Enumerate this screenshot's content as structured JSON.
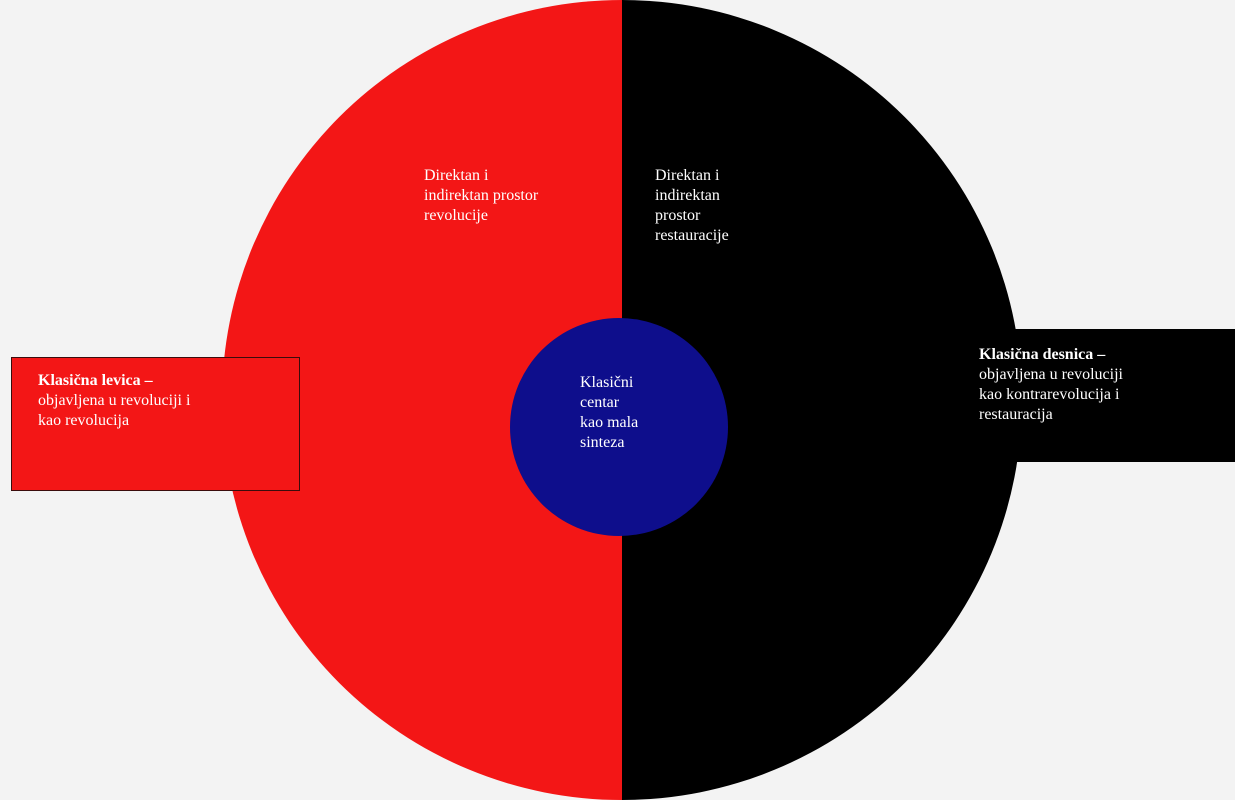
{
  "colors": {
    "left_half": "#f31616",
    "right_half": "#000000",
    "center_circle": "#0e0e8c",
    "text": "#ffffff"
  },
  "circle": {
    "left_half_label": [
      "Direktan i",
      "indirektan prostor",
      "revolucije"
    ],
    "right_half_label": [
      "Direktan i",
      "indirektan",
      "prostor",
      "restauracije"
    ],
    "center_label": [
      "Klasični",
      "centar",
      "kao mala",
      "sinteza"
    ]
  },
  "left_box": {
    "title": "Klasična levica –",
    "lines": [
      "objavljena u revoluciji i",
      "kao revolucija"
    ]
  },
  "right_box": {
    "title": "Klasična  desnica –",
    "lines": [
      "objavljena u revoluciji",
      "kao kontrarevolucija i",
      "restauracija"
    ]
  }
}
